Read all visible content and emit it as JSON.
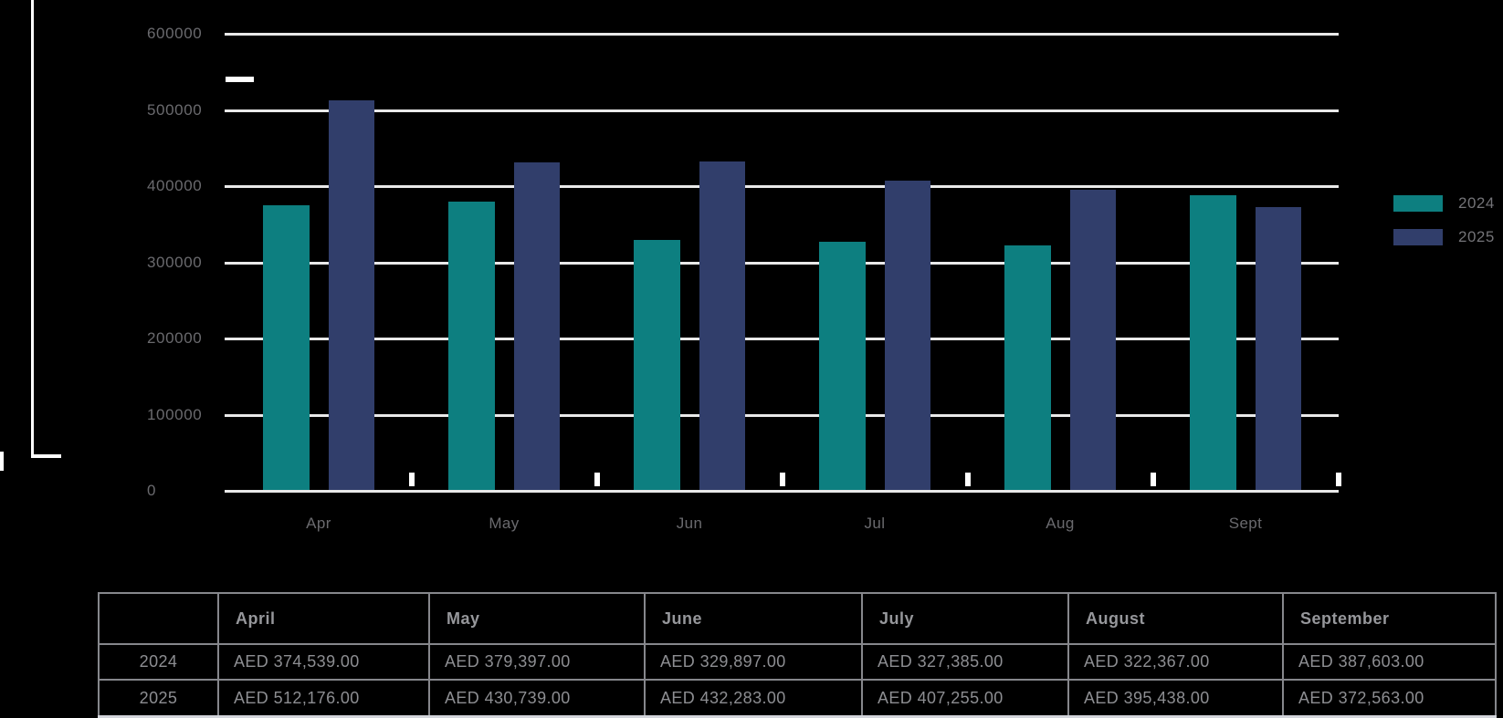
{
  "page": {
    "background": "#000000"
  },
  "chart_data": {
    "type": "bar",
    "title": "",
    "xlabel": "",
    "ylabel": "",
    "categories": [
      "Apr",
      "May",
      "Jun",
      "Jul",
      "Aug",
      "Sept"
    ],
    "series": [
      {
        "name": "2024",
        "color": "#0d7f80",
        "values": [
          374539,
          379397,
          329897,
          327385,
          322367,
          387603
        ]
      },
      {
        "name": "2025",
        "color": "#313e6b",
        "values": [
          512176,
          430739,
          432283,
          407255,
          395438,
          372563
        ]
      }
    ],
    "ylim": [
      0,
      600000
    ],
    "yticks": [
      0,
      100000,
      200000,
      300000,
      400000,
      500000,
      600000
    ],
    "ytick_labels": [
      "0",
      "100000",
      "200000",
      "300000",
      "400000",
      "500000",
      "600000"
    ],
    "grid": "horizontal",
    "gridline_color": "#e9e9e9",
    "axis_label_color": "#6a6a6e",
    "legend_position": "right"
  },
  "legend": {
    "items": [
      {
        "label": "2024",
        "color": "#0d7f80"
      },
      {
        "label": "2025",
        "color": "#313e6b"
      }
    ]
  },
  "table": {
    "corner_label": "",
    "columns": [
      "April",
      "May",
      "June",
      "July",
      "August",
      "September"
    ],
    "rows": [
      {
        "label": "2024",
        "values": [
          "AED 374,539.00",
          "AED 379,397.00",
          "AED 329,897.00",
          "AED 327,385.00",
          "AED 322,367.00",
          "AED 387,603.00"
        ]
      },
      {
        "label": "2025",
        "values": [
          "AED 512,176.00",
          "AED 430,739.00",
          "AED 432,283.00",
          "AED 407,255.00",
          "AED 395,438.00",
          "AED 372,563.00"
        ]
      }
    ],
    "border_color": "#86878c",
    "bottom_border_color": "#d3d5db",
    "text_color": "#8d8e92"
  }
}
